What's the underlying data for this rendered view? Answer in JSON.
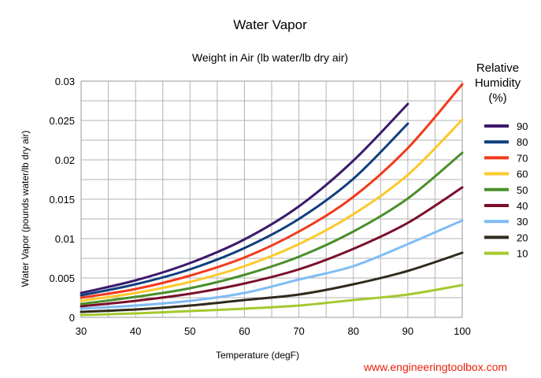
{
  "chart_data": {
    "type": "line",
    "title": "Water Vapor",
    "subtitle": "Weight in Air (lb water/lb dry air)",
    "xlabel": "Temperature (degF)",
    "ylabel": "Water Vapor (pounds water/lb dry air)",
    "xlim": [
      30,
      100
    ],
    "ylim": [
      0,
      0.03
    ],
    "x_ticks": [
      30,
      40,
      50,
      60,
      70,
      80,
      90,
      100
    ],
    "y_ticks": [
      0,
      0.005,
      0.01,
      0.015,
      0.02,
      0.025,
      0.03
    ],
    "grid": true,
    "legend_title": "Relative Humidity (%)",
    "legend_placement": "right",
    "series": [
      {
        "name": "90",
        "color": "#3b1a6b",
        "x": [
          30,
          40,
          50,
          60,
          70,
          80,
          90
        ],
        "values": [
          0.0031,
          0.0047,
          0.0069,
          0.0099,
          0.0141,
          0.0199,
          0.0271
        ]
      },
      {
        "name": "80",
        "color": "#0f3f7f",
        "x": [
          30,
          40,
          50,
          60,
          70,
          80,
          90
        ],
        "values": [
          0.0028,
          0.0042,
          0.0061,
          0.0088,
          0.0125,
          0.0176,
          0.0246
        ]
      },
      {
        "name": "70",
        "color": "#f23a1c",
        "x": [
          30,
          40,
          50,
          60,
          70,
          80,
          90,
          100
        ],
        "values": [
          0.0025,
          0.0036,
          0.0053,
          0.0076,
          0.0109,
          0.0153,
          0.0215,
          0.0296
        ]
      },
      {
        "name": "60",
        "color": "#fcc92b",
        "x": [
          30,
          40,
          50,
          60,
          70,
          80,
          90,
          100
        ],
        "values": [
          0.0021,
          0.0031,
          0.0045,
          0.0065,
          0.0093,
          0.0131,
          0.0181,
          0.0251
        ]
      },
      {
        "name": "50",
        "color": "#4a8f2b",
        "x": [
          30,
          40,
          50,
          60,
          70,
          80,
          90,
          100
        ],
        "values": [
          0.0017,
          0.0026,
          0.0037,
          0.0054,
          0.0077,
          0.0109,
          0.0151,
          0.0209
        ]
      },
      {
        "name": "40",
        "color": "#7a0f2a",
        "x": [
          30,
          40,
          50,
          60,
          70,
          80,
          90,
          100
        ],
        "values": [
          0.0014,
          0.0021,
          0.003,
          0.0043,
          0.0061,
          0.0087,
          0.012,
          0.0165
        ]
      },
      {
        "name": "30",
        "color": "#7fbcf5",
        "x": [
          30,
          40,
          50,
          60,
          70,
          80,
          90,
          100
        ],
        "values": [
          0.0011,
          0.0015,
          0.0021,
          0.0031,
          0.0048,
          0.0065,
          0.0093,
          0.0123
        ]
      },
      {
        "name": "20",
        "color": "#2f2a1a",
        "x": [
          30,
          40,
          50,
          60,
          70,
          80,
          90,
          100
        ],
        "values": [
          0.0007,
          0.001,
          0.0015,
          0.0022,
          0.0029,
          0.0042,
          0.0059,
          0.0082
        ]
      },
      {
        "name": "10",
        "color": "#a4c92e",
        "x": [
          30,
          40,
          50,
          60,
          70,
          80,
          90,
          100
        ],
        "values": [
          0.0003,
          0.0005,
          0.0008,
          0.0011,
          0.0015,
          0.0022,
          0.0029,
          0.0041
        ]
      }
    ]
  },
  "credit": "www.engineeringtoolbox.com"
}
